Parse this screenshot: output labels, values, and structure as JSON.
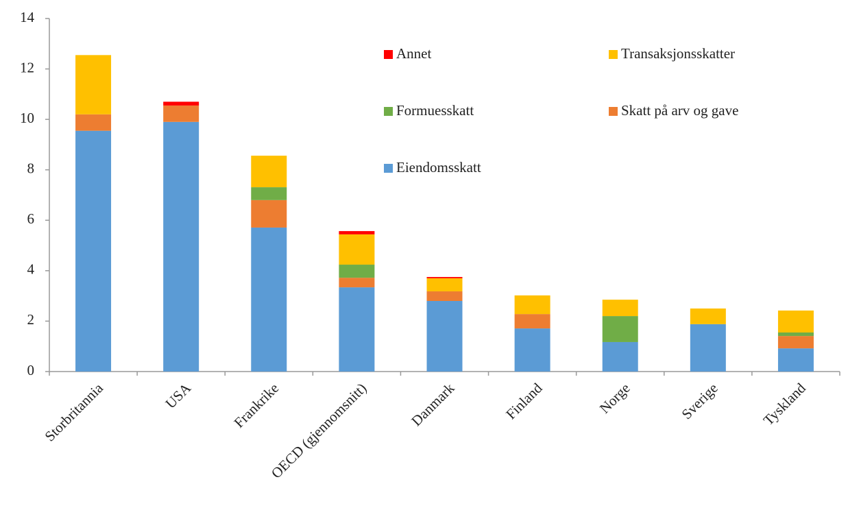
{
  "chart_data": {
    "type": "bar",
    "stacked": true,
    "categories": [
      "Storbritannia",
      "USA",
      "Frankrike",
      "OECD (gjennomsnitt)",
      "Danmark",
      "Finland",
      "Norge",
      "Sverige",
      "Tyskland"
    ],
    "series": [
      {
        "name": "Eiendomsskatt",
        "color": "#5b9bd5",
        "values": [
          9.55,
          9.9,
          5.71,
          3.34,
          2.8,
          1.71,
          1.17,
          1.88,
          0.92
        ]
      },
      {
        "name": "Skatt på arv og gave",
        "color": "#ed7d31",
        "values": [
          0.65,
          0.65,
          1.09,
          0.38,
          0.38,
          0.57,
          0,
          0,
          0.49
        ]
      },
      {
        "name": "Formuesskatt",
        "color": "#70ad47",
        "values": [
          0,
          0,
          0.51,
          0.52,
          0,
          0,
          1.03,
          0,
          0.14
        ]
      },
      {
        "name": "Transaksjonsskatter",
        "color": "#ffc000",
        "values": [
          2.35,
          0,
          1.25,
          1.2,
          0.52,
          0.74,
          0.65,
          0.62,
          0.87
        ]
      },
      {
        "name": "Annet",
        "color": "#ff0000",
        "values": [
          0,
          0.15,
          0,
          0.13,
          0.05,
          0,
          0,
          0,
          0
        ]
      }
    ],
    "ylim": [
      0,
      14
    ],
    "yticks": [
      0,
      2,
      4,
      6,
      8,
      10,
      12,
      14
    ],
    "grid": false
  }
}
